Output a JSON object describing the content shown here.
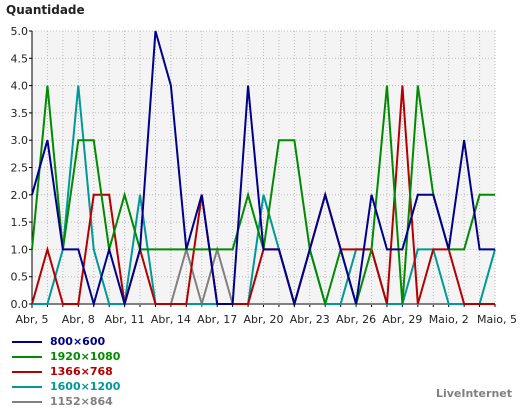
{
  "chart_data": {
    "type": "line",
    "title": "Quantidade",
    "xlabel": "",
    "ylabel": "",
    "ylim": [
      0,
      5
    ],
    "y_ticks": [
      "0.0",
      "0.5",
      "1.0",
      "1.5",
      "2.0",
      "2.5",
      "3.0",
      "3.5",
      "4.0",
      "4.5",
      "5.0"
    ],
    "x_ticks": [
      {
        "label": "Abr, 5",
        "index": 0
      },
      {
        "label": "Abr, 8",
        "index": 3
      },
      {
        "label": "Abr, 11",
        "index": 6
      },
      {
        "label": "Abr, 14",
        "index": 9
      },
      {
        "label": "Abr, 17",
        "index": 12
      },
      {
        "label": "Abr, 20",
        "index": 15
      },
      {
        "label": "Abr, 23",
        "index": 18
      },
      {
        "label": "Abr, 26",
        "index": 21
      },
      {
        "label": "Abr, 29",
        "index": 24
      },
      {
        "label": "Maio, 2",
        "index": 27
      },
      {
        "label": "Maio, 5",
        "index": 30
      }
    ],
    "grid": true,
    "background": "#f4f4f4",
    "series": [
      {
        "name": "800×600",
        "color": "#00008b",
        "values": [
          2,
          3,
          1,
          1,
          0,
          1,
          0,
          1,
          5,
          4,
          1,
          2,
          0,
          0,
          4,
          1,
          1,
          0,
          1,
          2,
          1,
          0,
          2,
          1,
          1,
          2,
          2,
          1,
          3,
          1,
          1
        ]
      },
      {
        "name": "1920×1080",
        "color": "#008b00",
        "values": [
          1,
          4,
          1,
          3,
          3,
          1,
          2,
          1,
          1,
          1,
          1,
          1,
          1,
          1,
          2,
          1,
          3,
          3,
          1,
          0,
          1,
          0,
          1,
          4,
          0,
          4,
          2,
          1,
          1,
          2,
          2
        ]
      },
      {
        "name": "1366×768",
        "color": "#b40000",
        "values": [
          0,
          1,
          0,
          0,
          2,
          2,
          0,
          1,
          0,
          0,
          0,
          2,
          0,
          0,
          0,
          1,
          1,
          0,
          1,
          2,
          1,
          1,
          1,
          0,
          4,
          0,
          1,
          1,
          0,
          0,
          0
        ]
      },
      {
        "name": "1600×1200",
        "color": "#009898",
        "values": [
          0,
          0,
          1,
          4,
          1,
          0,
          0,
          2,
          0,
          0,
          0,
          0,
          0,
          0,
          0,
          2,
          1,
          0,
          1,
          0,
          0,
          1,
          1,
          0,
          0,
          1,
          1,
          0,
          0,
          0,
          1
        ]
      },
      {
        "name": "1152×864",
        "color": "#808080",
        "values": [
          0,
          0,
          0,
          0,
          0,
          0,
          0,
          0,
          0,
          0,
          1,
          0,
          1,
          0,
          0,
          0,
          0,
          0,
          0,
          0,
          0,
          0,
          0,
          0,
          0,
          0,
          0,
          0,
          0,
          0,
          0
        ]
      }
    ]
  },
  "watermark": "LiveInternet"
}
